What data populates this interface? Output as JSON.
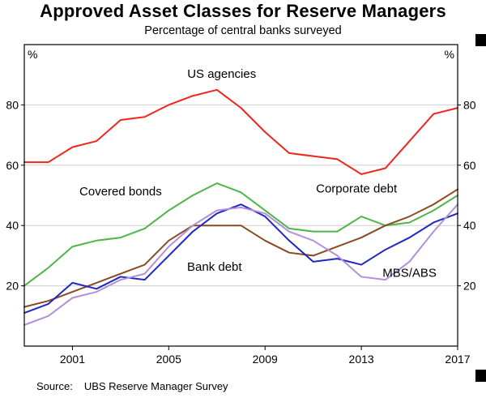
{
  "title": "Approved Asset Classes for Reserve Managers",
  "subtitle": "Percentage of central banks surveyed",
  "source": {
    "label": "Source:",
    "text": "UBS Reserve Manager Survey"
  },
  "chart_data": {
    "type": "line",
    "title": "Approved Asset Classes for Reserve Managers",
    "subtitle": "Percentage of central banks surveyed",
    "unit": "%",
    "grid": true,
    "legend": "inline-labels",
    "x": [
      1999,
      2000,
      2001,
      2002,
      2003,
      2004,
      2005,
      2006,
      2007,
      2008,
      2009,
      2010,
      2011,
      2012,
      2013,
      2014,
      2015,
      2016,
      2017
    ],
    "xlim": [
      1999,
      2017
    ],
    "ylim": [
      0,
      100
    ],
    "xticks": [
      2001,
      2005,
      2009,
      2013,
      2017
    ],
    "yticks": [
      20,
      40,
      60,
      80
    ],
    "series": [
      {
        "name": "US agencies",
        "color": "#f1251b",
        "values": [
          61,
          61,
          66,
          68,
          75,
          76,
          80,
          83,
          85,
          79,
          71,
          64,
          63,
          62,
          57,
          59,
          68,
          77,
          79
        ],
        "label": {
          "x": 2007.2,
          "y": 89
        }
      },
      {
        "name": "Covered bonds",
        "color": "#4eb548",
        "values": [
          20,
          26,
          33,
          35,
          36,
          39,
          45,
          50,
          54,
          51,
          45,
          39,
          38,
          38,
          43,
          40,
          41,
          45,
          50
        ],
        "label": {
          "x": 2003.0,
          "y": 50
        }
      },
      {
        "name": "Corporate debt",
        "color": "#8a4a22",
        "values": [
          13,
          15,
          18,
          21,
          24,
          27,
          35,
          40,
          40,
          40,
          35,
          31,
          30,
          33,
          36,
          40,
          43,
          47,
          52
        ],
        "label": {
          "x": 2012.8,
          "y": 51
        }
      },
      {
        "name": "Bank debt",
        "color": "#2127c2",
        "values": [
          11,
          14,
          21,
          19,
          23,
          22,
          30,
          38,
          44,
          47,
          43,
          35,
          28,
          29,
          27,
          32,
          36,
          41,
          44
        ],
        "label": {
          "x": 2006.9,
          "y": 25
        }
      },
      {
        "name": "MBS/ABS",
        "color": "#b28fd9",
        "values": [
          7,
          10,
          16,
          18,
          22,
          24,
          33,
          40,
          45,
          46,
          44,
          38,
          35,
          30,
          23,
          22,
          28,
          38,
          47
        ],
        "label": {
          "x": 2015.0,
          "y": 23
        }
      }
    ]
  }
}
